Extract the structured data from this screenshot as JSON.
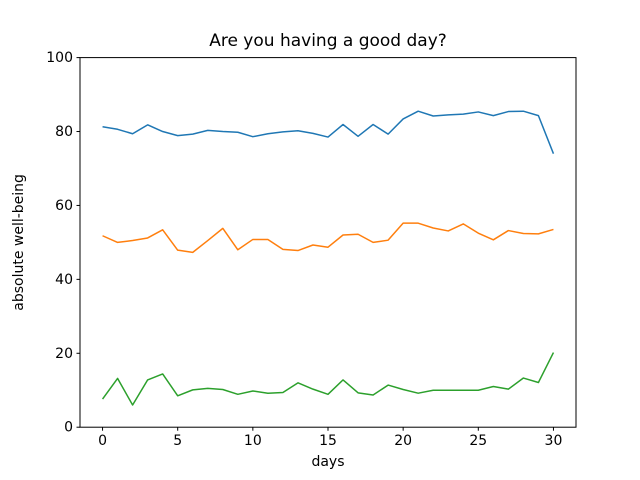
{
  "figure": {
    "background": "#ffffff",
    "spine_color": "#000000",
    "text_color": "#000000"
  },
  "chart_data": {
    "type": "line",
    "title": "Are you having a good day?",
    "xlabel": "days",
    "ylabel": "absolute well-being",
    "xlim": [
      -1.5,
      31.5
    ],
    "ylim": [
      0,
      100
    ],
    "xticks": [
      0,
      5,
      10,
      15,
      20,
      25,
      30
    ],
    "yticks": [
      0,
      20,
      40,
      60,
      80,
      100
    ],
    "grid": false,
    "legend": "none",
    "x": [
      0,
      1,
      2,
      3,
      4,
      5,
      6,
      7,
      8,
      9,
      10,
      11,
      12,
      13,
      14,
      15,
      16,
      17,
      18,
      19,
      20,
      21,
      22,
      23,
      24,
      25,
      26,
      27,
      28,
      29,
      30
    ],
    "series": [
      {
        "name": "blue-line",
        "color": "#1f77b4",
        "values": [
          81.3,
          80.6,
          79.4,
          81.8,
          80.0,
          78.9,
          79.3,
          80.3,
          80.0,
          79.8,
          78.6,
          79.4,
          79.9,
          80.2,
          79.5,
          78.5,
          81.9,
          78.7,
          81.9,
          79.3,
          83.4,
          85.5,
          84.2,
          84.5,
          84.7,
          85.3,
          84.3,
          85.4,
          85.5,
          84.3,
          74.0
        ]
      },
      {
        "name": "orange-line",
        "color": "#ff7f0e",
        "values": [
          51.8,
          50.0,
          50.5,
          51.2,
          53.4,
          47.9,
          47.3,
          50.5,
          53.8,
          48.0,
          50.8,
          50.8,
          48.1,
          47.8,
          49.3,
          48.7,
          52.0,
          52.2,
          50.0,
          50.6,
          55.2,
          55.2,
          53.9,
          53.1,
          55.0,
          52.5,
          50.7,
          53.2,
          52.4,
          52.3,
          53.5
        ]
      },
      {
        "name": "green-line",
        "color": "#2ca02c",
        "values": [
          7.6,
          13.2,
          6.0,
          12.8,
          14.4,
          8.5,
          10.1,
          10.5,
          10.2,
          8.9,
          9.8,
          9.2,
          9.4,
          12.0,
          10.3,
          8.9,
          12.8,
          9.3,
          8.7,
          11.4,
          10.2,
          9.2,
          10.0,
          10.0,
          10.0,
          10.0,
          11.0,
          10.3,
          13.3,
          12.1,
          20.2
        ]
      }
    ]
  }
}
